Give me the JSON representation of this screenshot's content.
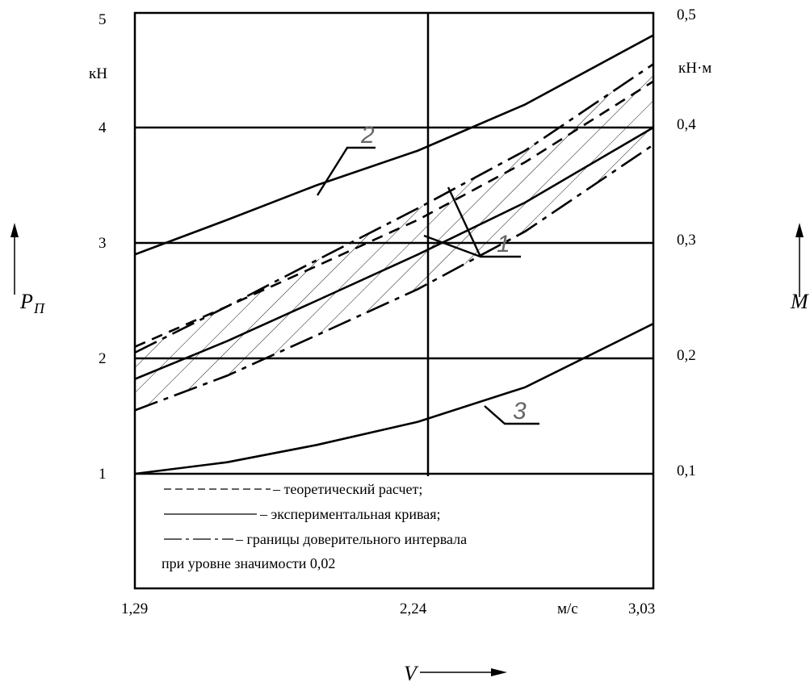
{
  "chart_data": {
    "type": "line",
    "x_axis": {
      "name": "V",
      "unit": "м/с",
      "ticks": [
        {
          "value": 1.29,
          "label": "1,29"
        },
        {
          "value": 2.24,
          "label": "2,24"
        },
        {
          "value": 3.03,
          "label": "3,03"
        }
      ],
      "range": [
        1.29,
        3.03
      ]
    },
    "y_axis_left": {
      "name": "P",
      "subscript": "П",
      "unit": "кН",
      "ticks": [
        {
          "value": 1,
          "label": "1"
        },
        {
          "value": 2,
          "label": "2"
        },
        {
          "value": 3,
          "label": "3"
        },
        {
          "value": 4,
          "label": "4"
        },
        {
          "value": 5,
          "label": "5"
        }
      ],
      "range": [
        0,
        5
      ]
    },
    "y_axis_right": {
      "name": "M",
      "unit": "кН·м",
      "ticks": [
        {
          "value": 0.1,
          "label": "0,1"
        },
        {
          "value": 0.2,
          "label": "0,2"
        },
        {
          "value": 0.3,
          "label": "0,3"
        },
        {
          "value": 0.4,
          "label": "0,4"
        },
        {
          "value": 0.5,
          "label": "0,5"
        }
      ]
    },
    "gridlines_y": [
      1,
      2,
      3,
      4
    ],
    "gridline_x": 2.24,
    "series": [
      {
        "name": "1",
        "style": "dashed",
        "x": [
          1.29,
          1.6,
          1.9,
          2.24,
          2.6,
          3.03
        ],
        "y": [
          2.1,
          2.45,
          2.8,
          3.2,
          3.7,
          4.4
        ]
      },
      {
        "name": "1",
        "style": "solid",
        "x": [
          1.29,
          1.6,
          1.9,
          2.24,
          2.6,
          3.03
        ],
        "y": [
          1.82,
          2.15,
          2.5,
          2.9,
          3.35,
          4.0
        ]
      },
      {
        "name": "1",
        "style": "dashdot",
        "x": [
          1.29,
          1.6,
          1.9,
          2.24,
          2.6,
          3.03
        ],
        "y": [
          2.05,
          2.45,
          2.85,
          3.3,
          3.8,
          4.55
        ]
      },
      {
        "name": "1",
        "style": "dashdot",
        "x": [
          1.29,
          1.6,
          1.9,
          2.24,
          2.6,
          3.03
        ],
        "y": [
          1.55,
          1.85,
          2.2,
          2.6,
          3.1,
          3.85
        ]
      },
      {
        "name": "2",
        "style": "solid",
        "x": [
          1.29,
          1.6,
          1.9,
          2.24,
          2.6,
          3.03
        ],
        "y": [
          2.9,
          3.2,
          3.5,
          3.8,
          4.2,
          4.8
        ]
      },
      {
        "name": "3",
        "style": "solid",
        "x": [
          1.29,
          1.6,
          1.9,
          2.24,
          2.6,
          3.03
        ],
        "y": [
          1.0,
          1.1,
          1.25,
          1.45,
          1.75,
          2.3
        ]
      }
    ],
    "curve_labels": [
      {
        "text": "2",
        "series": 4
      },
      {
        "text": "1",
        "series": 1
      },
      {
        "text": "3",
        "series": 5
      }
    ],
    "legend": [
      {
        "style": "dashed",
        "text": "– теоретический расчет;"
      },
      {
        "style": "solid",
        "text": "– экспериментальная кривая;"
      },
      {
        "style": "dashdot",
        "text": "– границы доверительного интервала"
      },
      {
        "style": "none",
        "text": "при уровне значимости 0,02"
      }
    ],
    "hatched_region": "between confidence interval bounds"
  }
}
